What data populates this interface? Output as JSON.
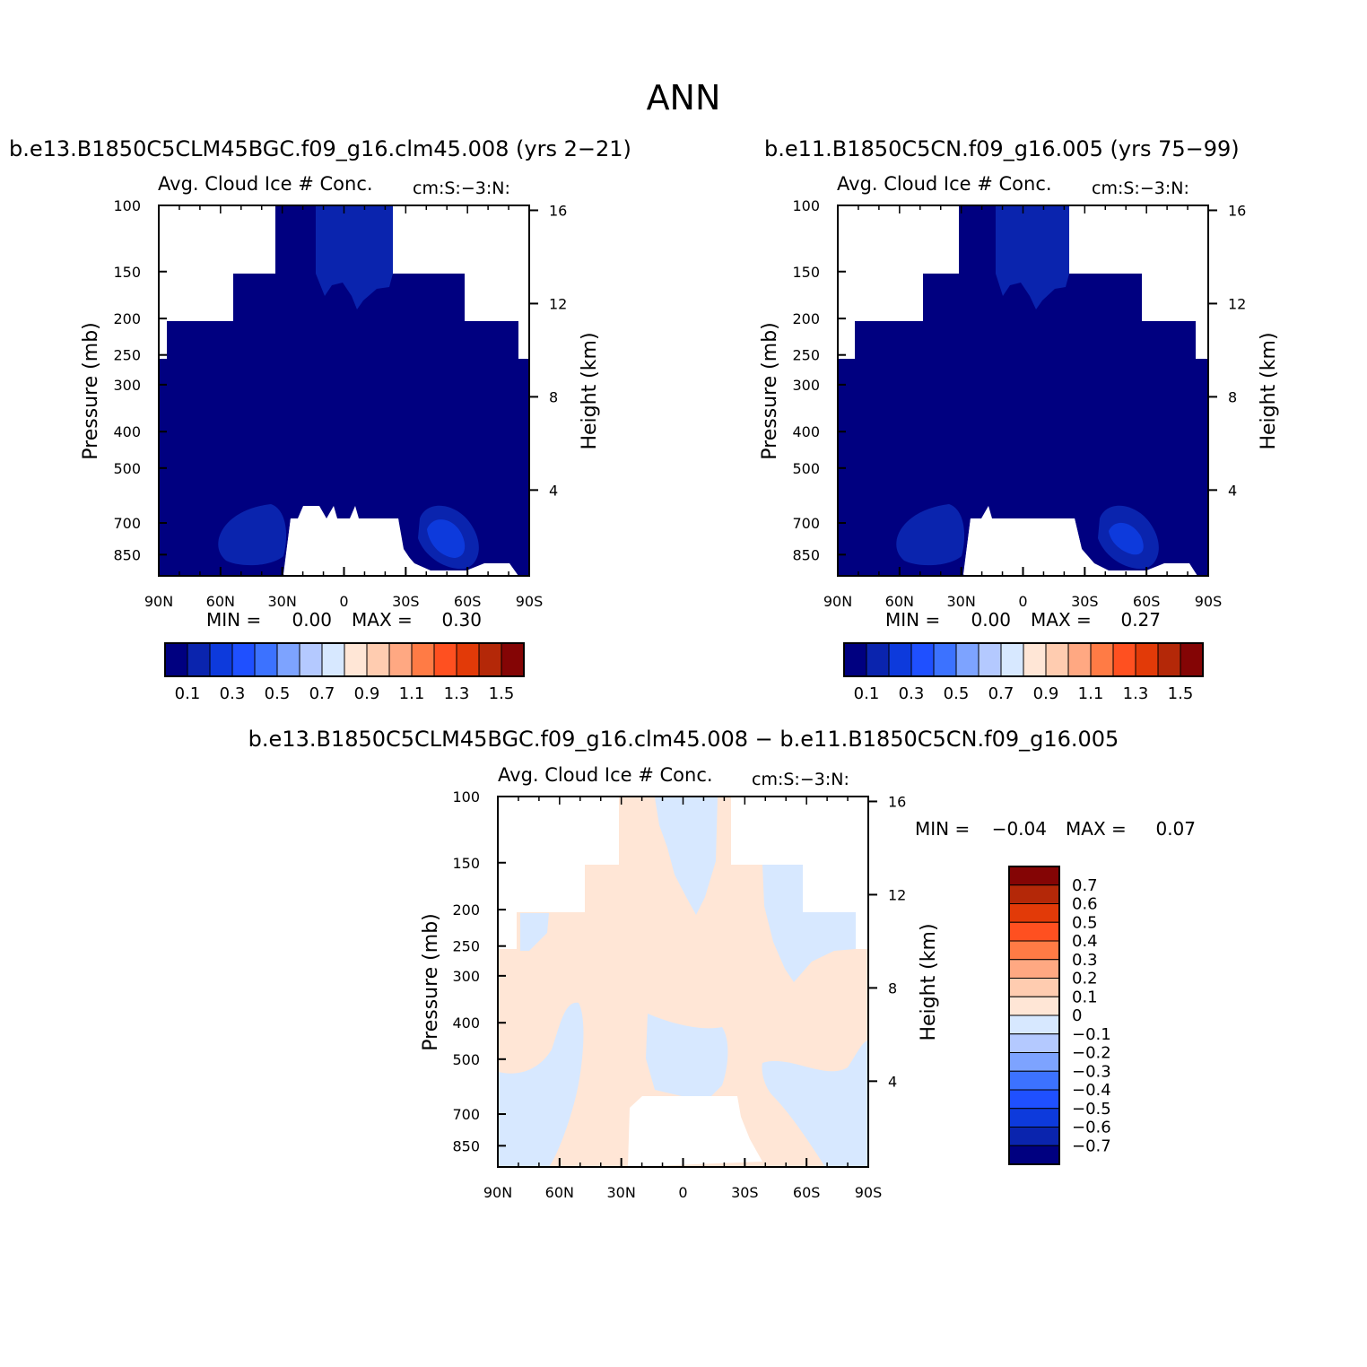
{
  "figure": {
    "title": "ANN",
    "colors": {
      "seq": [
        "#000080",
        "#0a24ae",
        "#0d3adc",
        "#1f50ff",
        "#3c72ff",
        "#7da3ff",
        "#b4c9ff",
        "#d7e8ff",
        "#ffe6d6",
        "#ffccb0",
        "#ffa882",
        "#ff7b45",
        "#ff5020",
        "#e23a08",
        "#b42808",
        "#840505"
      ],
      "fill_white": "#ffffff"
    }
  },
  "chart_data": [
    {
      "type": "heatmap",
      "id": "panel-test",
      "title": "b.e13.B1850C5CLM45BGC.f09_g16.clm45.008 (yrs 2−21)",
      "subtitle_left": "Avg. Cloud Ice # Conc.",
      "subtitle_right": "cm:S:−3:N:",
      "ylabel": "Pressure (mb)",
      "ylabel_right": "Height (km)",
      "x_ticks": [
        "90N",
        "60N",
        "30N",
        "0",
        "30S",
        "60S",
        "90S"
      ],
      "y_ticks": [
        "100",
        "150",
        "200",
        "250",
        "300",
        "400",
        "500",
        "700",
        "850"
      ],
      "y_right_ticks": [
        "16",
        "12",
        "8",
        "4"
      ],
      "min_label": "MIN =",
      "min_value": "0.00",
      "max_label": "MAX =",
      "max_value": "0.30",
      "colorbar": {
        "orientation": "horizontal",
        "labels": [
          "0.1",
          "0.3",
          "0.5",
          "0.7",
          "0.9",
          "1.1",
          "1.3",
          "1.5"
        ]
      }
    },
    {
      "type": "heatmap",
      "id": "panel-control",
      "title": "b.e11.B1850C5CN.f09_g16.005 (yrs 75−99)",
      "subtitle_left": "Avg. Cloud Ice # Conc.",
      "subtitle_right": "cm:S:−3:N:",
      "ylabel": "Pressure (mb)",
      "ylabel_right": "Height (km)",
      "x_ticks": [
        "90N",
        "60N",
        "30N",
        "0",
        "30S",
        "60S",
        "90S"
      ],
      "y_ticks": [
        "100",
        "150",
        "200",
        "250",
        "300",
        "400",
        "500",
        "700",
        "850"
      ],
      "y_right_ticks": [
        "16",
        "12",
        "8",
        "4"
      ],
      "min_label": "MIN =",
      "min_value": "0.00",
      "max_label": "MAX =",
      "max_value": "0.27",
      "colorbar": {
        "orientation": "horizontal",
        "labels": [
          "0.1",
          "0.3",
          "0.5",
          "0.7",
          "0.9",
          "1.1",
          "1.3",
          "1.5"
        ]
      }
    },
    {
      "type": "heatmap",
      "id": "panel-diff",
      "title": "b.e13.B1850C5CLM45BGC.f09_g16.clm45.008 − b.e11.B1850C5CN.f09_g16.005",
      "subtitle_left": "Avg. Cloud Ice # Conc.",
      "subtitle_right": "cm:S:−3:N:",
      "ylabel": "Pressure (mb)",
      "ylabel_right": "Height (km)",
      "x_ticks": [
        "90N",
        "60N",
        "30N",
        "0",
        "30S",
        "60S",
        "90S"
      ],
      "y_ticks": [
        "100",
        "150",
        "200",
        "250",
        "300",
        "400",
        "500",
        "700",
        "850"
      ],
      "y_right_ticks": [
        "16",
        "12",
        "8",
        "4"
      ],
      "min_label": "MIN =",
      "min_value": "−0.04",
      "max_label": "MAX =",
      "max_value": "0.07",
      "colorbar": {
        "orientation": "vertical",
        "labels": [
          "0.7",
          "0.6",
          "0.5",
          "0.4",
          "0.3",
          "0.2",
          "0.1",
          "0",
          "−0.1",
          "−0.2",
          "−0.3",
          "−0.4",
          "−0.5",
          "−0.6",
          "−0.7"
        ]
      }
    }
  ]
}
